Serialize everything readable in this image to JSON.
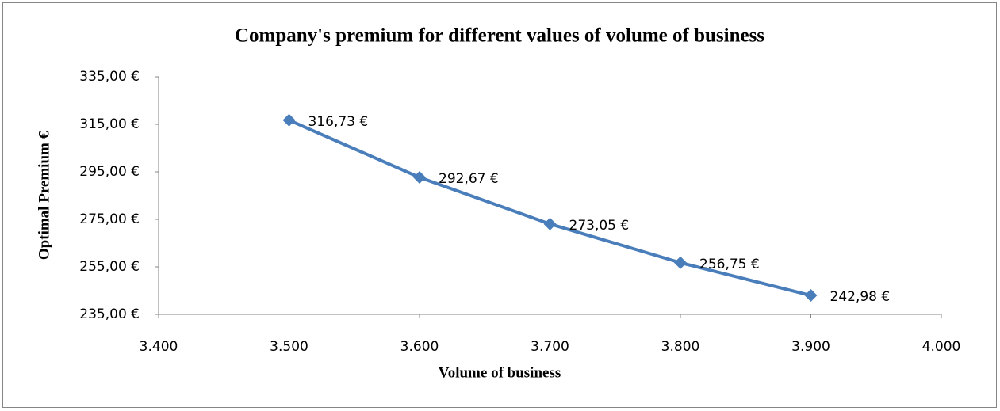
{
  "chart_data": {
    "type": "line",
    "title": "Company's premium for different values of volume of business",
    "x_label": "Volume of business",
    "y_label": "Optimal Premium €",
    "x": [
      3500,
      3600,
      3700,
      3800,
      3900
    ],
    "values": [
      316.73,
      292.67,
      273.05,
      256.75,
      242.98
    ],
    "value_labels": [
      "316,73 €",
      "292,67 €",
      "273,05 €",
      "256,75 €",
      "242,98 €"
    ],
    "color": "#4a7ebb",
    "marker": "diamond",
    "grid": false,
    "xlim": [
      3400,
      4000
    ],
    "xticks": [
      {
        "value": 3400,
        "label": "3.400"
      },
      {
        "value": 3500,
        "label": "3.500"
      },
      {
        "value": 3600,
        "label": "3.600"
      },
      {
        "value": 3700,
        "label": "3.700"
      },
      {
        "value": 3800,
        "label": "3.800"
      },
      {
        "value": 3900,
        "label": "3.900"
      },
      {
        "value": 4000,
        "label": "4.000"
      }
    ],
    "ylim": [
      235,
      335
    ],
    "yticks": [
      {
        "value": 235,
        "label": "235,00 €"
      },
      {
        "value": 255,
        "label": "255,00 €"
      },
      {
        "value": 275,
        "label": "275,00 €"
      },
      {
        "value": 295,
        "label": "295,00 €"
      },
      {
        "value": 315,
        "label": "315,00 €"
      },
      {
        "value": 335,
        "label": "335,00 €"
      }
    ]
  }
}
